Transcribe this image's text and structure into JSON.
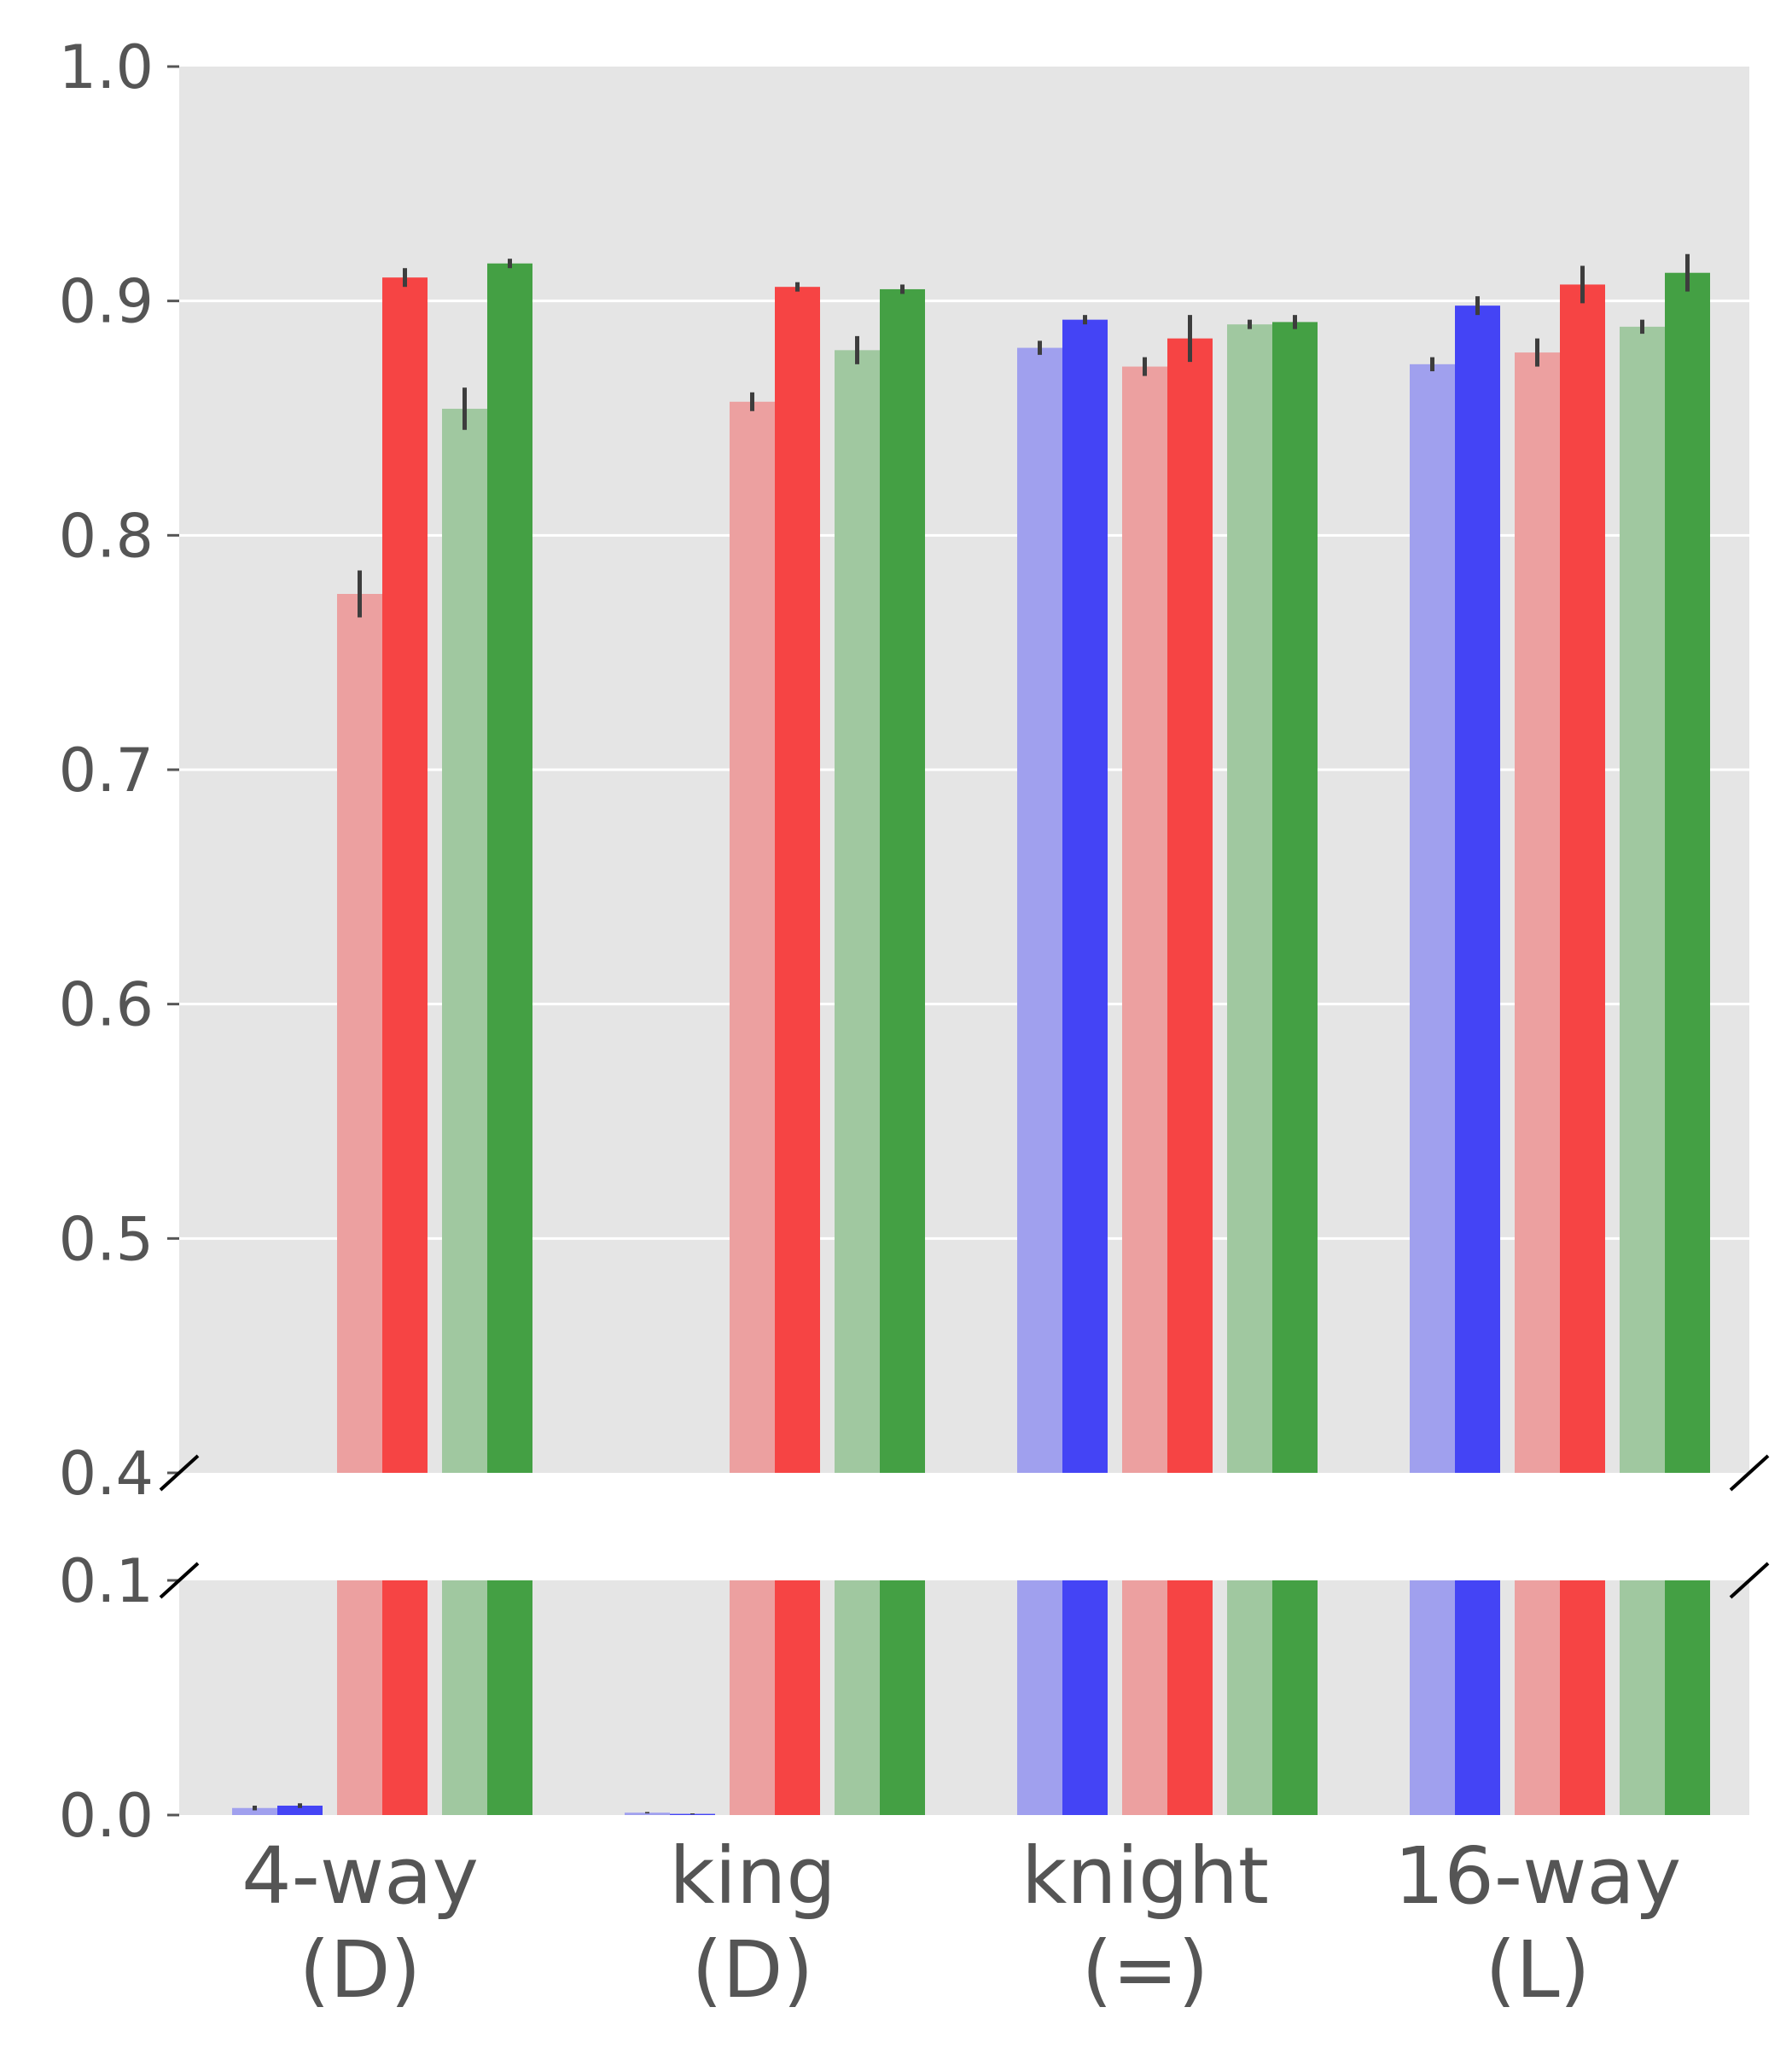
{
  "chart_data": {
    "type": "bar",
    "axis_break": {
      "lower_range": [
        0.0,
        0.1
      ],
      "upper_range": [
        0.4,
        1.0
      ]
    },
    "categories": [
      {
        "line1": "4-way",
        "line2": "(D)"
      },
      {
        "line1": "king",
        "line2": "(D)"
      },
      {
        "line1": "knight",
        "line2": "(=)"
      },
      {
        "line1": "16-way",
        "line2": "(L)"
      }
    ],
    "upper_yticks": [
      "1.0",
      "0.9",
      "0.8",
      "0.7",
      "0.6",
      "0.5",
      "0.4"
    ],
    "lower_yticks": [
      "0.1",
      "0.0"
    ],
    "grid": true,
    "background": "#e5e5e5",
    "gridline_color": "#ffffff",
    "errorbar_color": "#3d3d3d",
    "series": [
      {
        "color": "#a0a0ee",
        "values": [
          0.003,
          0.001,
          0.88,
          0.873
        ],
        "errors": [
          0.001,
          0.0003,
          0.003,
          0.003
        ]
      },
      {
        "color": "#4444f5",
        "values": [
          0.004,
          0.0005,
          0.892,
          0.898
        ],
        "errors": [
          0.001,
          0.0002,
          0.002,
          0.004
        ]
      },
      {
        "color": "#eca0a0",
        "values": [
          0.775,
          0.857,
          0.872,
          0.878
        ],
        "errors": [
          0.01,
          0.004,
          0.004,
          0.006
        ]
      },
      {
        "color": "#f64444",
        "values": [
          0.91,
          0.906,
          0.884,
          0.907
        ],
        "errors": [
          0.004,
          0.002,
          0.01,
          0.008
        ]
      },
      {
        "color": "#a0c8a0",
        "values": [
          0.854,
          0.879,
          0.89,
          0.889
        ],
        "errors": [
          0.009,
          0.006,
          0.002,
          0.003
        ]
      },
      {
        "color": "#44a044",
        "values": [
          0.916,
          0.905,
          0.891,
          0.912
        ],
        "errors": [
          0.002,
          0.002,
          0.003,
          0.008
        ]
      }
    ]
  }
}
